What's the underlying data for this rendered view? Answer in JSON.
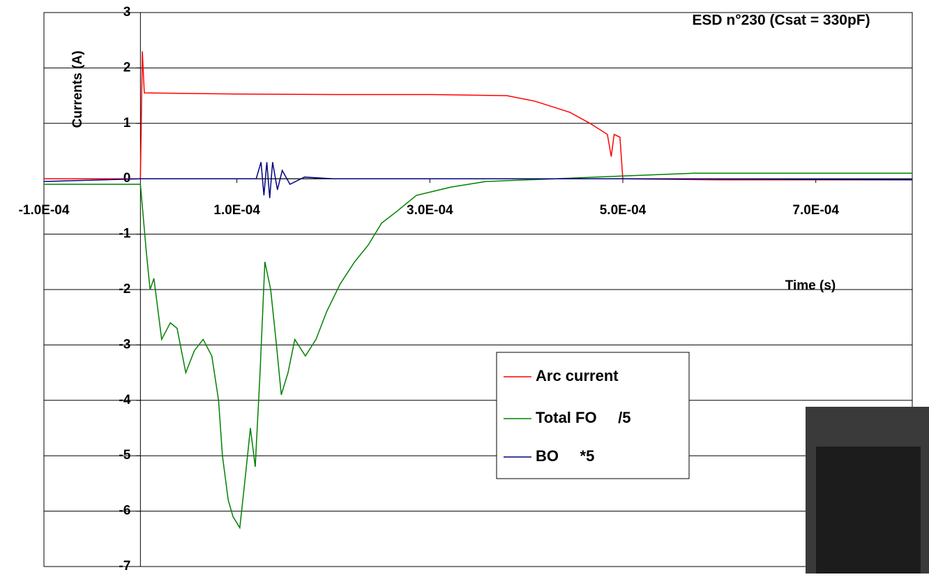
{
  "chart_data": {
    "type": "line",
    "title": "ESD n°230 (Csat = 330pF)",
    "y_label": "Currents (A)",
    "x_label": "Time (s)",
    "xlim": [
      -0.0001,
      0.0008
    ],
    "xticks": [
      {
        "value": -0.0001,
        "label": "-1.0E-04"
      },
      {
        "value": 0.0001,
        "label": "1.0E-04"
      },
      {
        "value": 0.0003,
        "label": "3.0E-04"
      },
      {
        "value": 0.0005,
        "label": "5.0E-04"
      },
      {
        "value": 0.0007,
        "label": "7.0E-04"
      }
    ],
    "ylim": [
      -7,
      3
    ],
    "yticks": [
      -7,
      -6,
      -5,
      -4,
      -3,
      -2,
      -1,
      0,
      1,
      2,
      3
    ],
    "grid": true,
    "series": [
      {
        "name": "Arc current",
        "color": "#ff0000",
        "x": [
          -0.0001,
          0,
          2e-06,
          4e-06,
          0.0001,
          0.0002,
          0.0003,
          0.00038,
          0.000409,
          0.000445,
          0.000466,
          0.000484,
          0.000488,
          0.000491,
          0.000497,
          0.0005,
          0.0006,
          0.0008
        ],
        "values": [
          0,
          0,
          2.3,
          1.55,
          1.53,
          1.52,
          1.52,
          1.5,
          1.4,
          1.2,
          1.0,
          0.8,
          0.4,
          0.8,
          0.75,
          0,
          -0.02,
          -0.02
        ]
      },
      {
        "name": "Total FO     /5",
        "color": "#008000",
        "x": [
          -0.0001,
          0,
          6e-06,
          1e-05,
          1.4e-05,
          2.2e-05,
          3.1e-05,
          3.8e-05,
          4.7e-05,
          5.6e-05,
          6.5e-05,
          7.4e-05,
          8.1e-05,
          8.5e-05,
          9.1e-05,
          9.6e-05,
          0.000103,
          0.000108,
          0.000114,
          0.000119,
          0.000124,
          0.000129,
          0.000135,
          0.000141,
          0.000146,
          0.000153,
          0.00016,
          0.000171,
          0.000182,
          0.000193,
          0.000207,
          0.000222,
          0.000236,
          0.00025,
          0.000265,
          0.000286,
          0.000322,
          0.000358,
          0.00043,
          0.0005,
          0.000574,
          0.0008
        ],
        "values": [
          -0.1,
          -0.1,
          -1.3,
          -2.0,
          -1.8,
          -2.9,
          -2.6,
          -2.7,
          -3.5,
          -3.1,
          -2.9,
          -3.2,
          -4.0,
          -5.0,
          -5.8,
          -6.1,
          -6.3,
          -5.5,
          -4.5,
          -5.2,
          -3.5,
          -1.5,
          -2.0,
          -3.0,
          -3.9,
          -3.5,
          -2.9,
          -3.2,
          -2.9,
          -2.4,
          -1.9,
          -1.5,
          -1.2,
          -0.8,
          -0.6,
          -0.3,
          -0.15,
          -0.05,
          0,
          0.05,
          0.1,
          0.1
        ]
      },
      {
        "name": "BO     *5",
        "color": "#000080",
        "x": [
          -0.0001,
          0,
          0.00012,
          0.000125,
          0.000128,
          0.000131,
          0.000134,
          0.000137,
          0.000142,
          0.000147,
          0.000155,
          0.00017,
          0.0002,
          0.0005,
          0.0008
        ],
        "values": [
          -0.05,
          0,
          0,
          0.3,
          -0.3,
          0.3,
          -0.35,
          0.3,
          -0.2,
          0.15,
          -0.1,
          0.03,
          0,
          0,
          -0.02
        ]
      }
    ]
  }
}
